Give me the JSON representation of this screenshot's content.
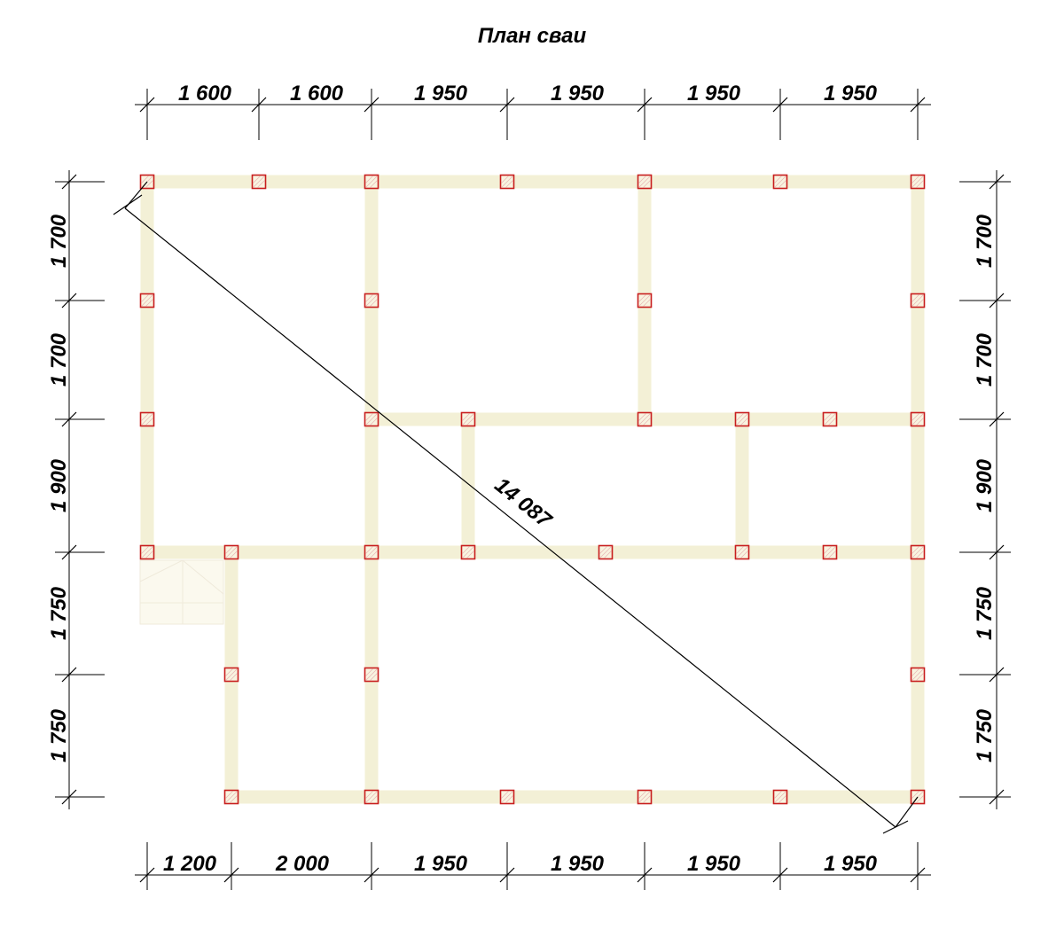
{
  "title": "План сваи",
  "diagram": {
    "top_dimensions": [
      "1 600",
      "1 600",
      "1 950",
      "1 950",
      "1 950",
      "1 950"
    ],
    "bottom_dimensions": [
      "1 200",
      "2 000",
      "1 950",
      "1 950",
      "1 950",
      "1 950"
    ],
    "left_dimensions": [
      "1 700",
      "1 700",
      "1 900",
      "1 750",
      "1 750"
    ],
    "right_dimensions": [
      "1 700",
      "1 700",
      "1 900",
      "1 750",
      "1 750"
    ],
    "diagonal_label": "14 087",
    "colors": {
      "wall_strip": "#f3f0d6",
      "pile_outline": "#c81e1e",
      "dimension_lines": "#000000"
    }
  }
}
